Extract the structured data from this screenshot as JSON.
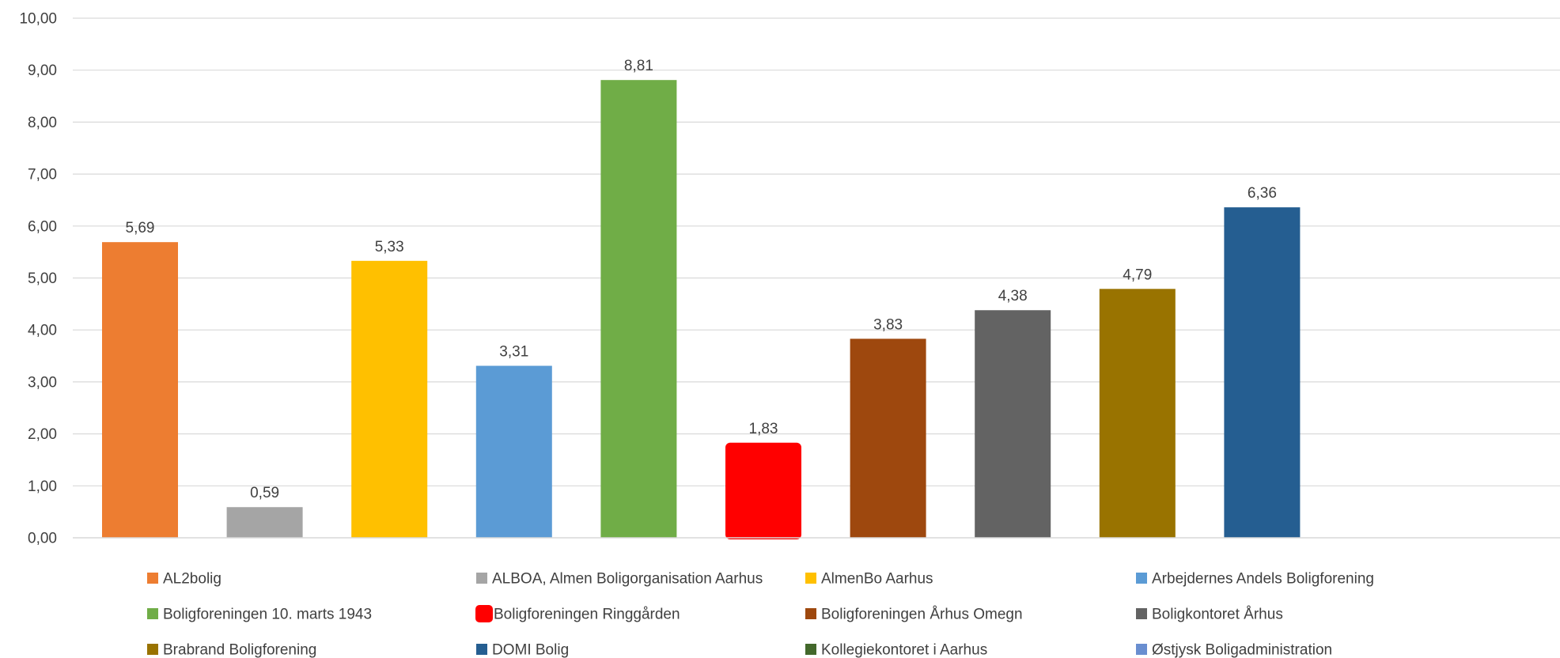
{
  "chart_data": {
    "type": "bar",
    "ylim": [
      0,
      10
    ],
    "ytick_step": 1,
    "ytick_labels": [
      "0,00",
      "1,00",
      "2,00",
      "3,00",
      "4,00",
      "5,00",
      "6,00",
      "7,00",
      "8,00",
      "9,00",
      "10,00"
    ],
    "grid": true,
    "legend_position": "bottom",
    "series": [
      {
        "name": "AL2bolig",
        "value": 5.69,
        "label": "5,69",
        "color": "#ED7D31",
        "shown": true
      },
      {
        "name": "ALBOA, Almen Boligorganisation Aarhus",
        "value": 0.59,
        "label": "0,59",
        "color": "#A5A5A5",
        "shown": true
      },
      {
        "name": "AlmenBo Aarhus",
        "value": 5.33,
        "label": "5,33",
        "color": "#FFC000",
        "shown": true
      },
      {
        "name": "Arbejdernes Andels Boligforening",
        "value": 3.31,
        "label": "3,31",
        "color": "#5B9BD5",
        "shown": true
      },
      {
        "name": "Boligforeningen 10. marts 1943",
        "value": 8.81,
        "label": "8,81",
        "color": "#70AD47",
        "shown": true
      },
      {
        "name": "Boligforeningen Ringgården",
        "value": 1.83,
        "label": "1,83",
        "color": "#FF0000",
        "shown": true,
        "rounded": true
      },
      {
        "name": "Boligforeningen Århus Omegn",
        "value": 3.83,
        "label": "3,83",
        "color": "#9E480E",
        "shown": true
      },
      {
        "name": "Boligkontoret Århus",
        "value": 4.38,
        "label": "4,38",
        "color": "#636363",
        "shown": true
      },
      {
        "name": "Brabrand Boligforening",
        "value": 4.79,
        "label": "4,79",
        "color": "#997300",
        "shown": true
      },
      {
        "name": "DOMI Bolig",
        "value": 6.36,
        "label": "6,36",
        "color": "#255E91",
        "shown": true
      },
      {
        "name": "Kollegiekontoret i Aarhus",
        "value": null,
        "label": "",
        "color": "#43682B",
        "shown": false
      },
      {
        "name": "Østjysk Boligadministration",
        "value": null,
        "label": "",
        "color": "#698ED0",
        "shown": false
      }
    ]
  }
}
